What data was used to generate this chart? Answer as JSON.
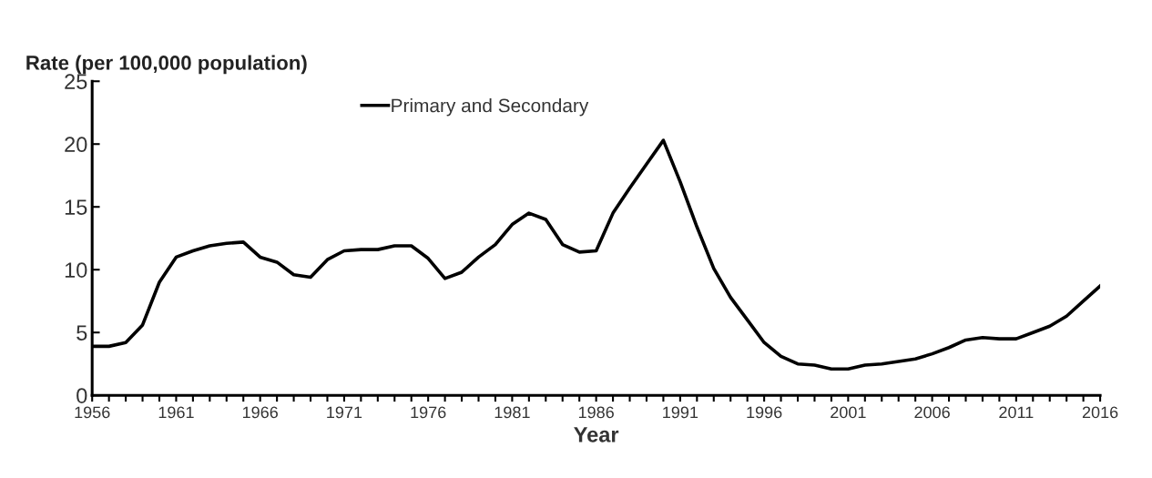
{
  "chart_data": {
    "type": "line",
    "ylabel": "Rate (per 100,000 population)",
    "xlabel": "Year",
    "x": [
      1956,
      1957,
      1958,
      1959,
      1960,
      1961,
      1962,
      1963,
      1964,
      1965,
      1966,
      1967,
      1968,
      1969,
      1970,
      1971,
      1972,
      1973,
      1974,
      1975,
      1976,
      1977,
      1978,
      1979,
      1980,
      1981,
      1982,
      1983,
      1984,
      1985,
      1986,
      1987,
      1988,
      1989,
      1990,
      1991,
      1992,
      1993,
      1994,
      1995,
      1996,
      1997,
      1998,
      1999,
      2000,
      2001,
      2002,
      2003,
      2004,
      2005,
      2006,
      2007,
      2008,
      2009,
      2010,
      2011,
      2012,
      2013,
      2014,
      2015,
      2016
    ],
    "series": [
      {
        "name": "Primary and Secondary",
        "color": "#000000",
        "values": [
          3.9,
          3.9,
          4.2,
          5.6,
          9.0,
          11.0,
          11.5,
          11.9,
          12.1,
          12.2,
          11.0,
          10.6,
          9.6,
          9.4,
          10.8,
          11.5,
          11.6,
          11.6,
          11.9,
          11.9,
          10.9,
          9.3,
          9.8,
          11.0,
          12.0,
          13.6,
          14.5,
          14.0,
          12.0,
          11.4,
          11.5,
          14.5,
          16.5,
          18.4,
          20.3,
          17.0,
          13.4,
          10.1,
          7.8,
          6.0,
          4.2,
          3.1,
          2.5,
          2.4,
          2.1,
          2.1,
          2.4,
          2.5,
          2.7,
          2.9,
          3.3,
          3.8,
          4.4,
          4.6,
          4.5,
          4.5,
          5.0,
          5.5,
          6.3,
          7.5,
          8.7
        ]
      }
    ],
    "xlim": [
      1956,
      2016
    ],
    "xticks": [
      1956,
      {
        "value": 1957,
        "label": null
      },
      {
        "value": 1958,
        "label": null
      },
      {
        "value": 1959,
        "label": null
      },
      {
        "value": 1960,
        "label": null
      },
      1961,
      {
        "value": 1962,
        "label": null
      },
      {
        "value": 1963,
        "label": null
      },
      {
        "value": 1964,
        "label": null
      },
      {
        "value": 1965,
        "label": null
      },
      1966,
      {
        "value": 1967,
        "label": null
      },
      {
        "value": 1968,
        "label": null
      },
      {
        "value": 1969,
        "label": null
      },
      {
        "value": 1970,
        "label": null
      },
      1971,
      {
        "value": 1972,
        "label": null
      },
      {
        "value": 1973,
        "label": null
      },
      {
        "value": 1974,
        "label": null
      },
      {
        "value": 1975,
        "label": null
      },
      1976,
      {
        "value": 1977,
        "label": null
      },
      {
        "value": 1978,
        "label": null
      },
      {
        "value": 1979,
        "label": null
      },
      {
        "value": 1980,
        "label": null
      },
      1981,
      {
        "value": 1982,
        "label": null
      },
      {
        "value": 1983,
        "label": null
      },
      {
        "value": 1984,
        "label": null
      },
      {
        "value": 1985,
        "label": null
      },
      1986,
      {
        "value": 1987,
        "label": null
      },
      {
        "value": 1988,
        "label": null
      },
      {
        "value": 1989,
        "label": null
      },
      {
        "value": 1990,
        "label": null
      },
      1991,
      {
        "value": 1992,
        "label": null
      },
      {
        "value": 1993,
        "label": null
      },
      {
        "value": 1994,
        "label": null
      },
      {
        "value": 1995,
        "label": null
      },
      1996,
      {
        "value": 1997,
        "label": null
      },
      {
        "value": 1998,
        "label": null
      },
      {
        "value": 1999,
        "label": null
      },
      {
        "value": 2000,
        "label": null
      },
      2001,
      {
        "value": 2002,
        "label": null
      },
      {
        "value": 2003,
        "label": null
      },
      {
        "value": 2004,
        "label": null
      },
      {
        "value": 2005,
        "label": null
      },
      2006,
      {
        "value": 2007,
        "label": null
      },
      {
        "value": 2008,
        "label": null
      },
      {
        "value": 2009,
        "label": null
      },
      {
        "value": 2010,
        "label": null
      },
      2011,
      {
        "value": 2012,
        "label": null
      },
      {
        "value": 2013,
        "label": null
      },
      {
        "value": 2014,
        "label": null
      },
      {
        "value": 2015,
        "label": null
      },
      2016
    ],
    "ylim": [
      0,
      25
    ],
    "yticks": [
      0,
      5,
      10,
      15,
      20,
      25
    ],
    "grid": false,
    "legend": "top"
  }
}
